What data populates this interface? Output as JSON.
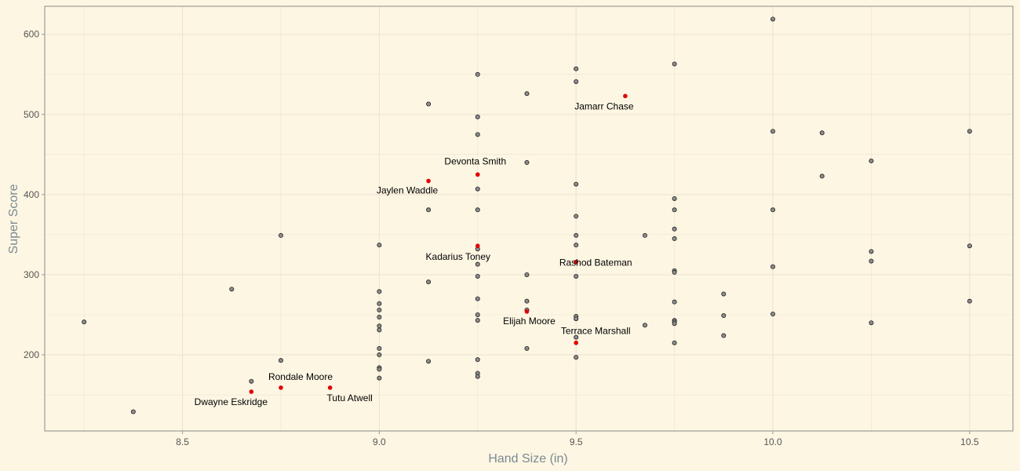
{
  "chart_data": {
    "type": "scatter",
    "xlabel": "Hand Size (in)",
    "ylabel": "Super Score",
    "xlim": [
      8.15,
      10.61
    ],
    "ylim": [
      105,
      635
    ],
    "x_ticks": [
      8.5,
      9.0,
      9.5,
      10.0,
      10.5
    ],
    "x_tick_labels": [
      "8.5",
      "9.0",
      "9.5",
      "10.0",
      "10.5"
    ],
    "y_ticks": [
      200,
      300,
      400,
      500,
      600
    ],
    "y_tick_labels": [
      "200",
      "300",
      "400",
      "500",
      "600"
    ],
    "grid": true,
    "colors": {
      "background": "#fdf6e3",
      "grid": "#ebe3cf",
      "point_fill": "#8c8c8c",
      "point_stroke": "#222222",
      "highlight": "#e00000",
      "axis_title": "#7a8a94",
      "tick_label": "#555555",
      "frame": "#8a8a8a"
    },
    "points": [
      [
        8.25,
        241
      ],
      [
        8.375,
        129
      ],
      [
        8.625,
        282
      ],
      [
        8.675,
        167
      ],
      [
        8.75,
        349
      ],
      [
        8.75,
        193
      ],
      [
        9.0,
        337
      ],
      [
        9.0,
        279
      ],
      [
        9.0,
        264
      ],
      [
        9.0,
        256
      ],
      [
        9.0,
        247
      ],
      [
        9.0,
        236
      ],
      [
        9.0,
        231
      ],
      [
        9.0,
        208
      ],
      [
        9.0,
        200
      ],
      [
        9.0,
        184
      ],
      [
        9.0,
        182
      ],
      [
        9.0,
        171
      ],
      [
        9.125,
        513
      ],
      [
        9.125,
        381
      ],
      [
        9.125,
        291
      ],
      [
        9.125,
        192
      ],
      [
        9.25,
        550
      ],
      [
        9.25,
        497
      ],
      [
        9.25,
        475
      ],
      [
        9.25,
        407
      ],
      [
        9.25,
        381
      ],
      [
        9.25,
        332
      ],
      [
        9.25,
        313
      ],
      [
        9.25,
        298
      ],
      [
        9.25,
        270
      ],
      [
        9.25,
        250
      ],
      [
        9.25,
        243
      ],
      [
        9.25,
        194
      ],
      [
        9.25,
        177
      ],
      [
        9.25,
        173
      ],
      [
        9.375,
        526
      ],
      [
        9.375,
        440
      ],
      [
        9.375,
        300
      ],
      [
        9.375,
        267
      ],
      [
        9.375,
        256
      ],
      [
        9.375,
        208
      ],
      [
        9.5,
        557
      ],
      [
        9.5,
        541
      ],
      [
        9.5,
        413
      ],
      [
        9.5,
        373
      ],
      [
        9.5,
        349
      ],
      [
        9.5,
        337
      ],
      [
        9.5,
        298
      ],
      [
        9.5,
        248
      ],
      [
        9.5,
        245
      ],
      [
        9.5,
        222
      ],
      [
        9.5,
        197
      ],
      [
        9.675,
        349
      ],
      [
        9.675,
        237
      ],
      [
        9.75,
        563
      ],
      [
        9.75,
        395
      ],
      [
        9.75,
        381
      ],
      [
        9.75,
        357
      ],
      [
        9.75,
        345
      ],
      [
        9.75,
        305
      ],
      [
        9.75,
        303
      ],
      [
        9.75,
        266
      ],
      [
        9.75,
        243
      ],
      [
        9.75,
        241
      ],
      [
        9.75,
        239
      ],
      [
        9.75,
        215
      ],
      [
        9.875,
        276
      ],
      [
        9.875,
        249
      ],
      [
        9.875,
        224
      ],
      [
        10.0,
        619
      ],
      [
        10.0,
        479
      ],
      [
        10.0,
        381
      ],
      [
        10.0,
        310
      ],
      [
        10.0,
        251
      ],
      [
        10.125,
        477
      ],
      [
        10.125,
        423
      ],
      [
        10.25,
        442
      ],
      [
        10.25,
        329
      ],
      [
        10.25,
        317
      ],
      [
        10.25,
        240
      ],
      [
        10.5,
        479
      ],
      [
        10.5,
        336
      ],
      [
        10.5,
        267
      ]
    ],
    "highlighted": [
      {
        "name": "Jamarr Chase",
        "x": 9.625,
        "y": 523
      },
      {
        "name": "Devonta Smith",
        "x": 9.25,
        "y": 425
      },
      {
        "name": "Jaylen Waddle",
        "x": 9.125,
        "y": 417
      },
      {
        "name": "Kadarius Toney",
        "x": 9.25,
        "y": 336
      },
      {
        "name": "Rashod Bateman",
        "x": 9.5,
        "y": 316
      },
      {
        "name": "Elijah Moore",
        "x": 9.375,
        "y": 254
      },
      {
        "name": "Terrace Marshall",
        "x": 9.5,
        "y": 215
      },
      {
        "name": "Rondale Moore",
        "x": 8.75,
        "y": 159
      },
      {
        "name": "Tutu Atwell",
        "x": 8.875,
        "y": 159
      },
      {
        "name": "Dwayne Eskridge",
        "x": 8.675,
        "y": 154
      }
    ]
  }
}
